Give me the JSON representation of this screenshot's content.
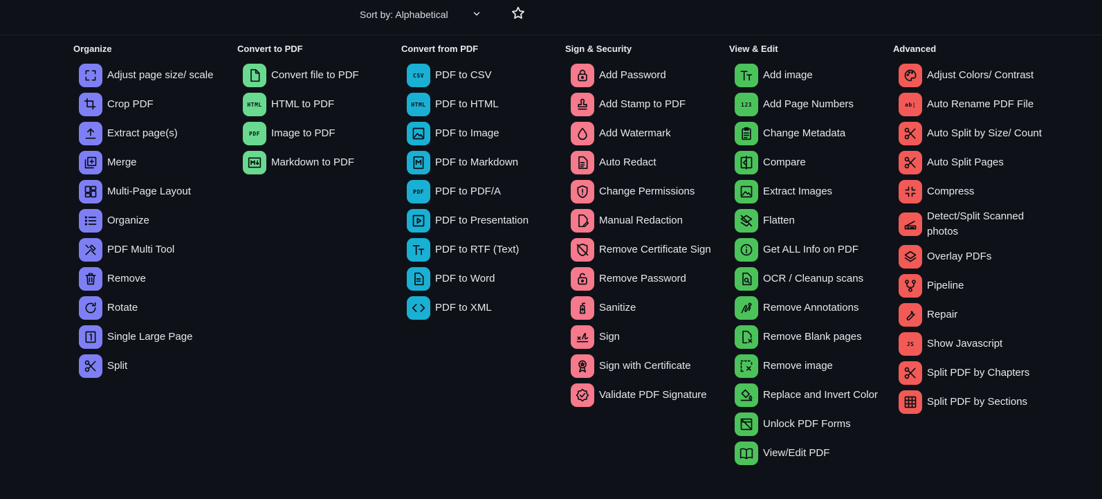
{
  "toolbar": {
    "sort_label": "Sort by: Alphabetical",
    "icons": {
      "sort_chevron": "chevron-down-icon",
      "favorite": "star-icon"
    }
  },
  "colors": {
    "background": "#0e1218",
    "organize": "#7f7ff5",
    "convert_to_pdf": "#69d98f",
    "convert_from_pdf": "#19b0d4",
    "sign_security": "#f6798c",
    "view_edit": "#4cc35a",
    "advanced": "#f25a57"
  },
  "categories": {
    "organize": {
      "title": "Organize",
      "items": [
        {
          "label": "Adjust page size/ scale",
          "icon": "expand-icon"
        },
        {
          "label": "Crop PDF",
          "icon": "crop-icon"
        },
        {
          "label": "Extract page(s)",
          "icon": "upload-icon"
        },
        {
          "label": "Merge",
          "icon": "library-add-icon"
        },
        {
          "label": "Multi-Page Layout",
          "icon": "dashboard-icon"
        },
        {
          "label": "Organize",
          "icon": "list-icon"
        },
        {
          "label": "PDF Multi Tool",
          "icon": "tools-icon"
        },
        {
          "label": "Remove",
          "icon": "trash-icon"
        },
        {
          "label": "Rotate",
          "icon": "rotate-icon"
        },
        {
          "label": "Single Large Page",
          "icon": "single-page-icon"
        },
        {
          "label": "Split",
          "icon": "scissors-icon"
        }
      ]
    },
    "convert_to_pdf": {
      "title": "Convert to PDF",
      "items": [
        {
          "label": "Convert file to PDF",
          "icon": "file-icon"
        },
        {
          "label": "HTML to PDF",
          "icon": "html-icon",
          "text": "HTML"
        },
        {
          "label": "Image to PDF",
          "icon": "pdf-image-icon",
          "text": "PDF"
        },
        {
          "label": "Markdown to PDF",
          "icon": "markdown-icon"
        }
      ]
    },
    "convert_from_pdf": {
      "title": "Convert from PDF",
      "items": [
        {
          "label": "PDF to CSV",
          "icon": "csv-icon",
          "text": "CSV"
        },
        {
          "label": "PDF to HTML",
          "icon": "html-icon",
          "text": "HTML"
        },
        {
          "label": "PDF to Image",
          "icon": "image-icon"
        },
        {
          "label": "PDF to Markdown",
          "icon": "markdown-file-icon"
        },
        {
          "label": "PDF to PDF/A",
          "icon": "pdf-stack-icon",
          "text": "PDF"
        },
        {
          "label": "PDF to Presentation",
          "icon": "slideshow-icon"
        },
        {
          "label": "PDF to RTF (Text)",
          "icon": "text-fields-icon"
        },
        {
          "label": "PDF to Word",
          "icon": "document-icon"
        },
        {
          "label": "PDF to XML",
          "icon": "code-icon"
        }
      ]
    },
    "sign_security": {
      "title": "Sign & Security",
      "items": [
        {
          "label": "Add Password",
          "icon": "lock-icon"
        },
        {
          "label": "Add Stamp to PDF",
          "icon": "stamp-icon"
        },
        {
          "label": "Add Watermark",
          "icon": "water-drop-icon"
        },
        {
          "label": "Auto Redact",
          "icon": "redact-icon"
        },
        {
          "label": "Change Permissions",
          "icon": "shield-icon"
        },
        {
          "label": "Manual Redaction",
          "icon": "edit-document-icon"
        },
        {
          "label": "Remove Certificate Sign",
          "icon": "remove-moderator-icon"
        },
        {
          "label": "Remove Password",
          "icon": "unlock-icon"
        },
        {
          "label": "Sanitize",
          "icon": "sanitizer-icon"
        },
        {
          "label": "Sign",
          "icon": "signature-icon"
        },
        {
          "label": "Sign with Certificate",
          "icon": "certificate-icon"
        },
        {
          "label": "Validate PDF Signature",
          "icon": "verified-icon"
        }
      ]
    },
    "view_edit": {
      "title": "View & Edit",
      "items": [
        {
          "label": "Add image",
          "icon": "text-fields-icon"
        },
        {
          "label": "Add Page Numbers",
          "icon": "numbers-icon",
          "text": "123"
        },
        {
          "label": "Change Metadata",
          "icon": "clipboard-icon"
        },
        {
          "label": "Compare",
          "icon": "compare-icon"
        },
        {
          "label": "Extract Images",
          "icon": "image-icon"
        },
        {
          "label": "Flatten",
          "icon": "layers-off-icon"
        },
        {
          "label": "Get ALL Info on PDF",
          "icon": "info-icon"
        },
        {
          "label": "OCR / Cleanup scans",
          "icon": "document-search-icon"
        },
        {
          "label": "Remove Annotations",
          "icon": "draw-icon"
        },
        {
          "label": "Remove Blank pages",
          "icon": "file-remove-icon"
        },
        {
          "label": "Remove image",
          "icon": "select-remove-icon"
        },
        {
          "label": "Replace and Invert Color",
          "icon": "format-color-fill-icon"
        },
        {
          "label": "Unlock PDF Forms",
          "icon": "preview-off-icon"
        },
        {
          "label": "View/Edit PDF",
          "icon": "book-icon"
        }
      ]
    },
    "advanced": {
      "title": "Advanced",
      "items": [
        {
          "label": "Adjust Colors/ Contrast",
          "icon": "palette-icon"
        },
        {
          "label": "Auto Rename PDF File",
          "icon": "rename-icon",
          "text": "ab|"
        },
        {
          "label": "Auto Split by Size/ Count",
          "icon": "scissors-icon"
        },
        {
          "label": "Auto Split Pages",
          "icon": "scissors-icon"
        },
        {
          "label": "Compress",
          "icon": "compress-icon"
        },
        {
          "label": "Detect/Split Scanned photos",
          "icon": "scanner-icon"
        },
        {
          "label": "Overlay PDFs",
          "icon": "layers-icon"
        },
        {
          "label": "Pipeline",
          "icon": "pipeline-icon"
        },
        {
          "label": "Repair",
          "icon": "build-icon"
        },
        {
          "label": "Show Javascript",
          "icon": "javascript-icon",
          "text": "JS"
        },
        {
          "label": "Split PDF by Chapters",
          "icon": "scissors-icon"
        },
        {
          "label": "Split PDF by Sections",
          "icon": "grid-icon"
        }
      ]
    }
  }
}
